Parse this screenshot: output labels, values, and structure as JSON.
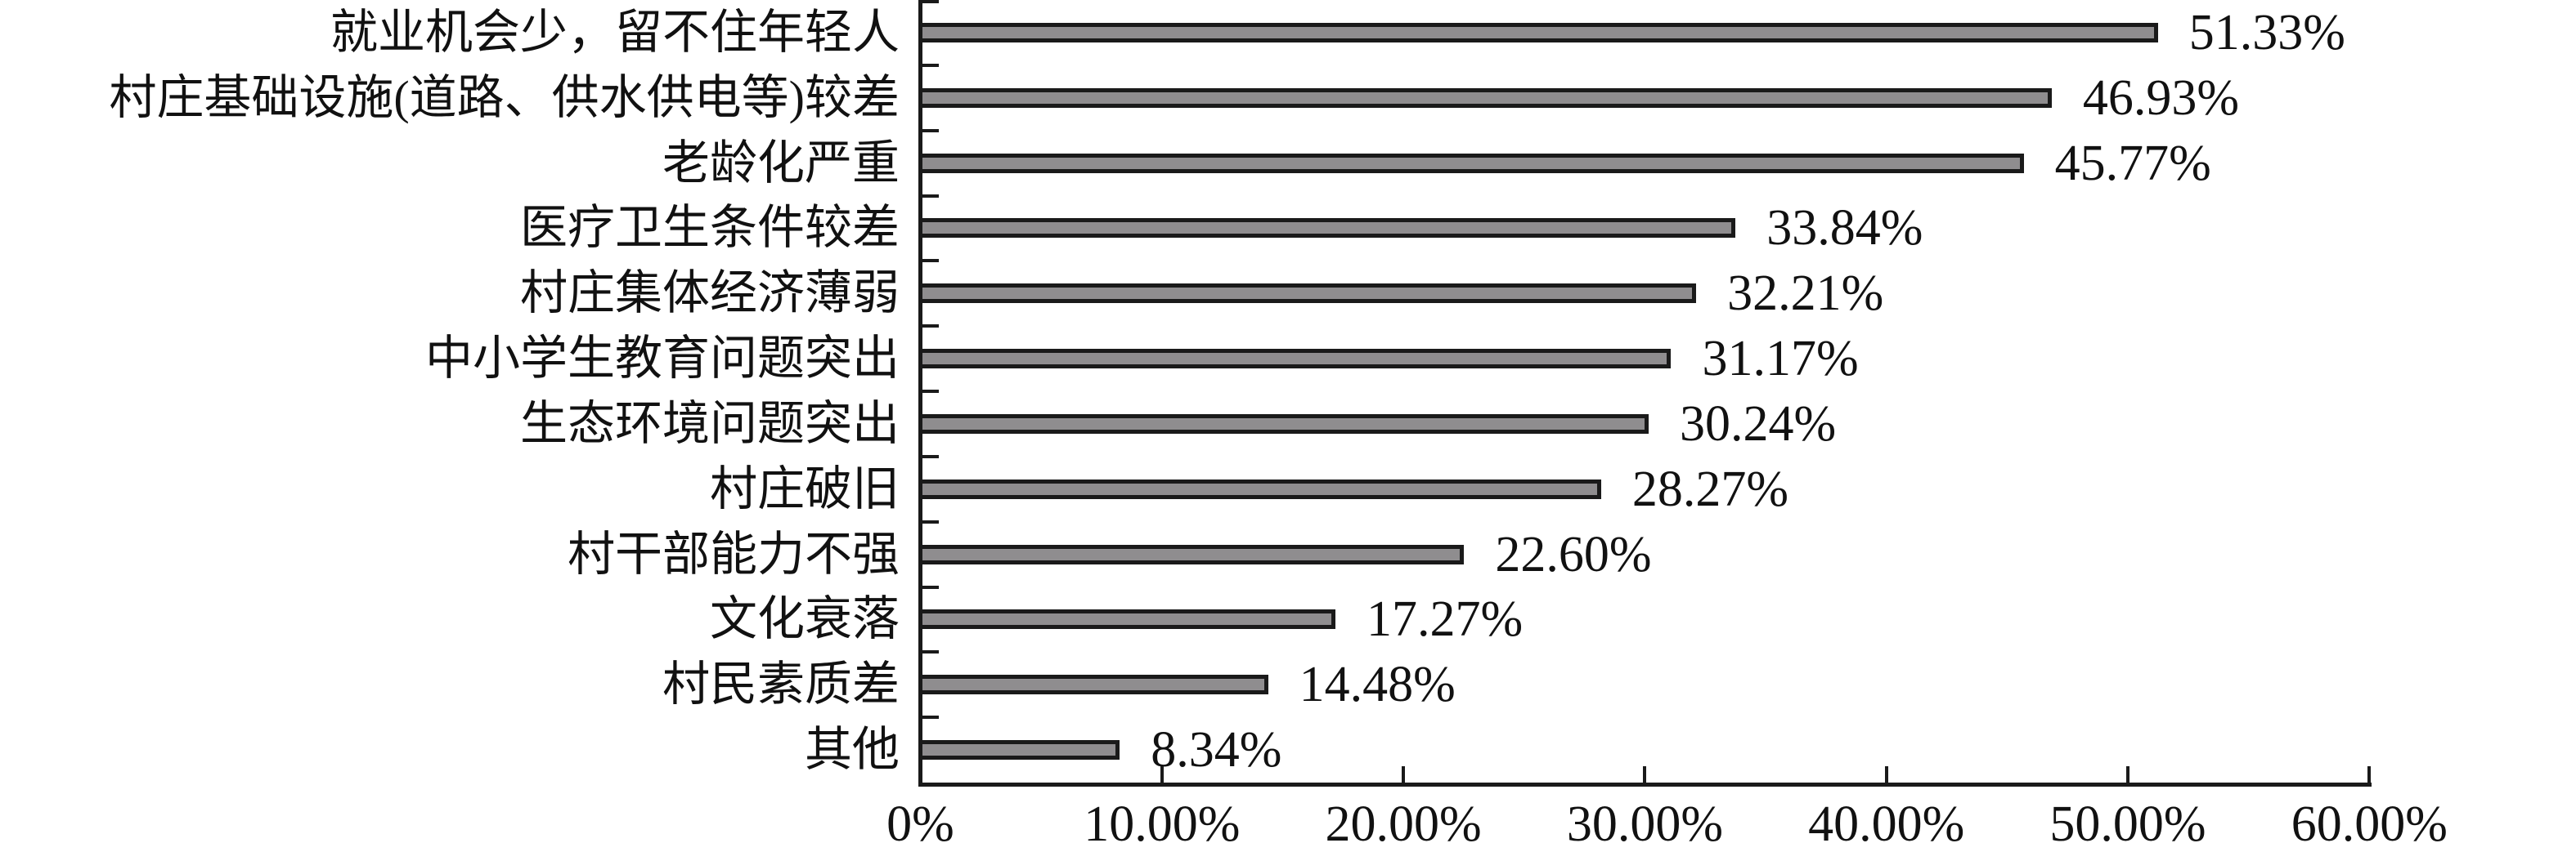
{
  "chart_data": {
    "type": "bar",
    "orientation": "horizontal",
    "categories": [
      "就业机会少，留不住年轻人",
      "村庄基础设施(道路、供水供电等)较差",
      "老龄化严重",
      "医疗卫生条件较差",
      "村庄集体经济薄弱",
      "中小学生教育问题突出",
      "生态环境问题突出",
      "村庄破旧",
      "村干部能力不强",
      "文化衰落",
      "村民素质差",
      "其他"
    ],
    "values": [
      51.33,
      46.93,
      45.77,
      33.84,
      32.21,
      31.17,
      30.24,
      28.27,
      22.6,
      17.27,
      14.48,
      8.34
    ],
    "value_labels": [
      "51.33%",
      "46.93%",
      "45.77%",
      "33.84%",
      "32.21%",
      "31.17%",
      "30.24%",
      "28.27%",
      "22.60%",
      "17.27%",
      "14.48%",
      "8.34%"
    ],
    "xlim": [
      0,
      60
    ],
    "xtick_values": [
      0,
      10,
      20,
      30,
      40,
      50,
      60
    ],
    "xtick_labels": [
      "0%",
      "10.00%",
      "20.00%",
      "30.00%",
      "40.00%",
      "50.00%",
      "60.00%"
    ],
    "grid": false,
    "legend": false,
    "data_label_position": "outside-end",
    "colors": {
      "bar_fill": "#8F8D8F",
      "bar_border": "#1A1A1A",
      "axis": "#1A1A1A",
      "text": "#111111",
      "background": "#FFFFFF"
    }
  }
}
